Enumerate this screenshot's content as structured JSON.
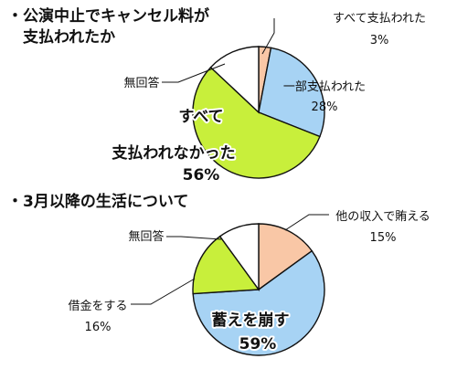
{
  "page": {
    "heading_1": "・公演中止でキャンセル料が\n　支払われたか",
    "heading_2": "・3月以降の生活について"
  },
  "chart_data": [
    {
      "type": "pie",
      "title": "・公演中止でキャンセル料が支払われたか",
      "slices": [
        {
          "label": "すべて支払われた",
          "value": 3,
          "value_label": "3%",
          "color": "#f9c7a6"
        },
        {
          "label": "一部支払われた",
          "value": 28,
          "value_label": "28%",
          "color": "#a7d3f4"
        },
        {
          "label": "すべて支払われなかった",
          "value": 56,
          "value_label": "56%",
          "color": "#c8ef3b"
        },
        {
          "label": "無回答",
          "value": 13,
          "value_label": "",
          "color": "#ffffff"
        }
      ]
    },
    {
      "type": "pie",
      "title": "・3月以降の生活について",
      "slices": [
        {
          "label": "他の収入で賄える",
          "value": 15,
          "value_label": "15%",
          "color": "#f9c7a6"
        },
        {
          "label": "蓄えを崩す",
          "value": 59,
          "value_label": "59%",
          "color": "#a7d3f4"
        },
        {
          "label": "借金をする",
          "value": 16,
          "value_label": "16%",
          "color": "#c8ef3b"
        },
        {
          "label": "無回答",
          "value": 10,
          "value_label": "",
          "color": "#ffffff"
        }
      ]
    }
  ]
}
